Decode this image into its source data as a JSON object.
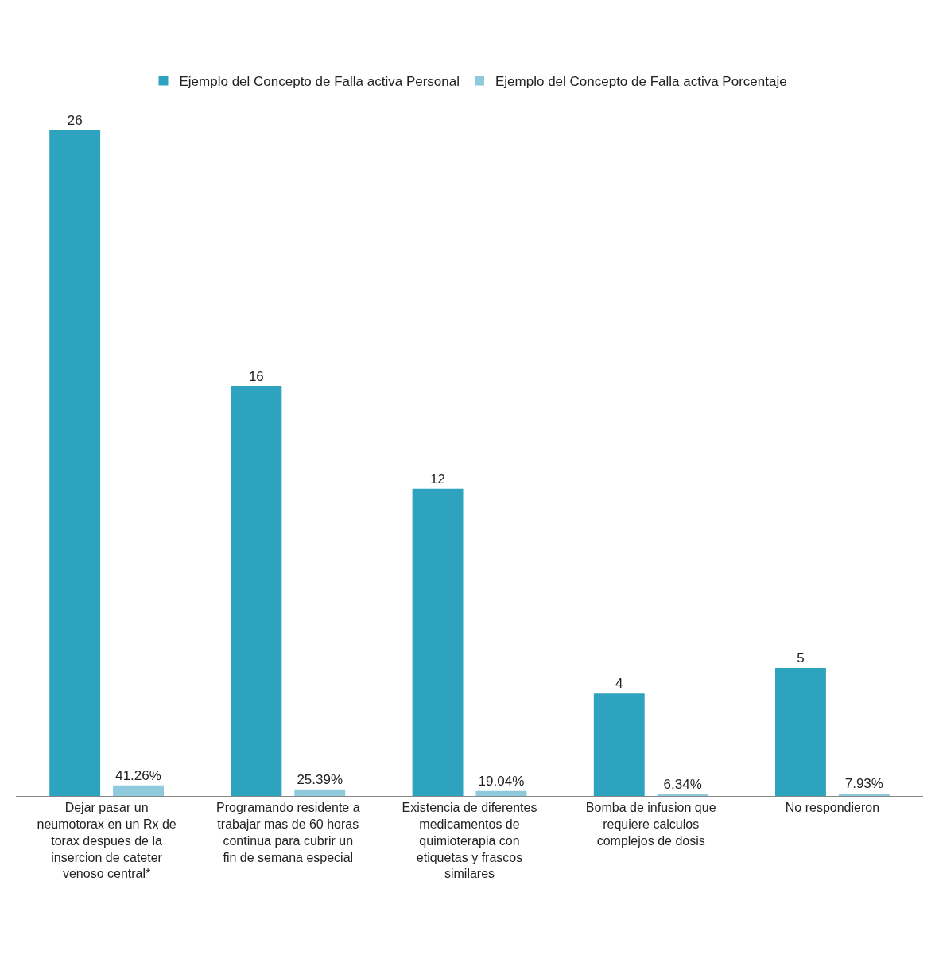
{
  "chart_data": {
    "type": "bar",
    "categories": [
      "Dejar pasar un neumotorax en un Rx de torax despues de la insercion de cateter venoso central*",
      "Programando residente a trabajar mas de 60 horas continua para cubrir un fin de semana especial",
      "Existencia de diferentes medicamentos de quimioterapia con etiquetas y frascos similares",
      "Bomba de infusion que requiere calculos complejos de dosis",
      "No respondieron"
    ],
    "series": [
      {
        "name": "Ejemplo del Concepto de Falla activa Personal",
        "color": "#2ea3c0",
        "values": [
          26,
          16,
          12,
          4,
          5
        ],
        "value_labels": [
          "26",
          "16",
          "12",
          "4",
          "5"
        ]
      },
      {
        "name": "Ejemplo del Concepto de Falla activa Porcentaje",
        "color": "#8fc9dc",
        "values": [
          0.4126,
          0.2539,
          0.1904,
          0.0634,
          0.0793
        ],
        "value_labels": [
          "41.26%",
          "25.39%",
          "19.04%",
          "6.34%",
          "7.93%"
        ]
      }
    ],
    "legend": "top",
    "tick_labels": "x"
  }
}
